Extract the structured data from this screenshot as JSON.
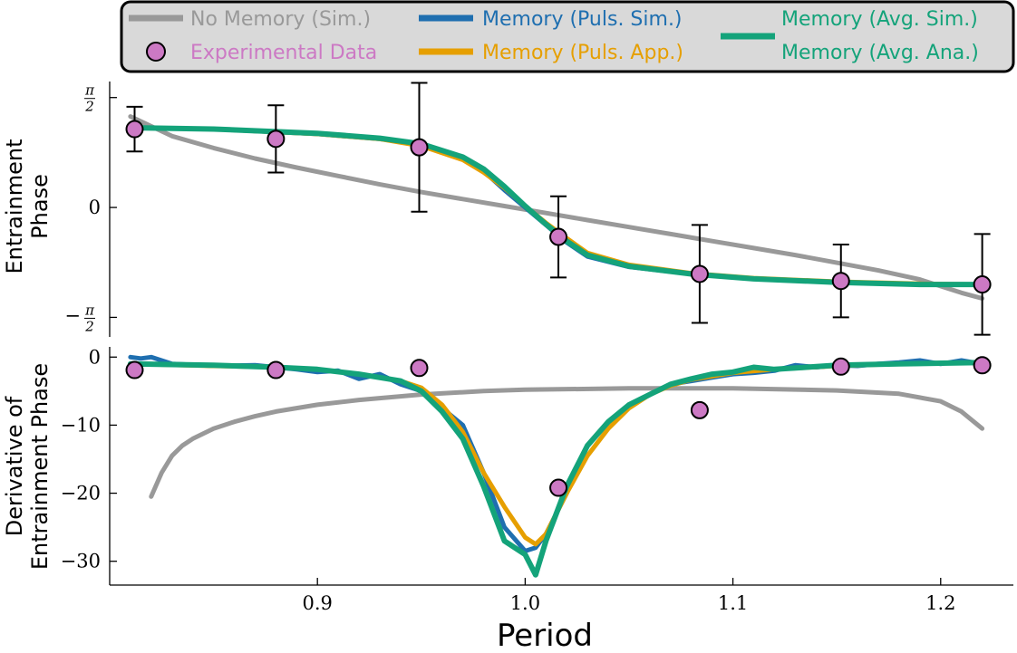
{
  "colors": {
    "no_memory": "#999999",
    "experimental": "#cc79c4",
    "puls_sim": "#1f6fb0",
    "puls_app": "#e69f00",
    "avg": "#14a37a",
    "legend_bg": "#d9d9d9"
  },
  "legend": {
    "no_memory": "No Memory (Sim.)",
    "experimental": "Experimental Data",
    "puls_sim": "Memory (Puls. Sim.)",
    "puls_app": "Memory (Puls. App.)",
    "avg_sim": "Memory (Avg. Sim.)",
    "avg_ana": "Memory (Avg. Ana.)"
  },
  "chart_data": [
    {
      "type": "line",
      "panel": "top",
      "ylabel": [
        "Entrainment",
        "Phase"
      ],
      "xlim": [
        0.8,
        1.235
      ],
      "ylim": [
        -1.85,
        1.8
      ],
      "y_ticks": [
        {
          "value": 1.5708,
          "label_num": "π",
          "label_den": "2",
          "sign": ""
        },
        {
          "value": 0,
          "label": "0"
        },
        {
          "value": -1.5708,
          "label_num": "π",
          "label_den": "2",
          "sign": "−"
        }
      ],
      "series": [
        {
          "key": "no_memory",
          "x": [
            0.81,
            0.83,
            0.85,
            0.87,
            0.89,
            0.91,
            0.93,
            0.95,
            0.97,
            0.99,
            1.01,
            1.03,
            1.05,
            1.07,
            1.09,
            1.11,
            1.13,
            1.15,
            1.17,
            1.19,
            1.21,
            1.22
          ],
          "y": [
            1.3,
            1.02,
            0.85,
            0.7,
            0.57,
            0.45,
            0.33,
            0.22,
            0.12,
            0.02,
            -0.08,
            -0.18,
            -0.28,
            -0.38,
            -0.48,
            -0.58,
            -0.68,
            -0.79,
            -0.9,
            -1.03,
            -1.22,
            -1.3
          ]
        },
        {
          "key": "puls_sim",
          "x": [
            0.81,
            0.85,
            0.9,
            0.93,
            0.95,
            0.97,
            0.98,
            0.99,
            1.0,
            1.01,
            1.02,
            1.03,
            1.05,
            1.08,
            1.11,
            1.15,
            1.19,
            1.22
          ],
          "y": [
            1.14,
            1.12,
            1.05,
            0.98,
            0.9,
            0.7,
            0.52,
            0.25,
            0.0,
            -0.25,
            -0.5,
            -0.7,
            -0.85,
            -0.95,
            -1.02,
            -1.07,
            -1.1,
            -1.1
          ]
        },
        {
          "key": "puls_app",
          "x": [
            0.81,
            0.85,
            0.9,
            0.93,
            0.95,
            0.97,
            0.98,
            0.99,
            1.0,
            1.01,
            1.02,
            1.03,
            1.05,
            1.08,
            1.11,
            1.15,
            1.19,
            1.22
          ],
          "y": [
            1.14,
            1.12,
            1.05,
            0.98,
            0.88,
            0.68,
            0.5,
            0.28,
            0.02,
            -0.22,
            -0.44,
            -0.65,
            -0.82,
            -0.94,
            -1.01,
            -1.06,
            -1.09,
            -1.1
          ]
        },
        {
          "key": "avg",
          "x": [
            0.81,
            0.85,
            0.9,
            0.93,
            0.95,
            0.97,
            0.98,
            0.99,
            1.0,
            1.01,
            1.02,
            1.03,
            1.05,
            1.08,
            1.11,
            1.15,
            1.19,
            1.22
          ],
          "y": [
            1.14,
            1.12,
            1.06,
            0.99,
            0.91,
            0.72,
            0.55,
            0.3,
            0.02,
            -0.24,
            -0.48,
            -0.68,
            -0.84,
            -0.95,
            -1.02,
            -1.07,
            -1.1,
            -1.1
          ]
        }
      ],
      "experimental": {
        "x": [
          0.812,
          0.88,
          0.949,
          1.016,
          1.084,
          1.152,
          1.22
        ],
        "y": [
          1.12,
          0.98,
          0.86,
          -0.42,
          -0.95,
          -1.05,
          -1.1
        ],
        "err": [
          0.32,
          0.48,
          0.92,
          0.58,
          0.7,
          0.52,
          0.72
        ]
      }
    },
    {
      "type": "line",
      "panel": "bottom",
      "xlabel": "Period",
      "ylabel": [
        "Derivative of",
        "Entrainment Phase"
      ],
      "xlim": [
        0.8,
        1.235
      ],
      "ylim": [
        -33.5,
        1.5
      ],
      "y_ticks": [
        0,
        -10,
        -20,
        -30
      ],
      "x_ticks": [
        0.9,
        1.0,
        1.1,
        1.2
      ],
      "series": [
        {
          "key": "no_memory",
          "x": [
            0.82,
            0.825,
            0.83,
            0.835,
            0.84,
            0.85,
            0.86,
            0.87,
            0.88,
            0.9,
            0.92,
            0.95,
            0.98,
            1.0,
            1.05,
            1.1,
            1.15,
            1.18,
            1.2,
            1.21,
            1.22
          ],
          "y": [
            -20.5,
            -17,
            -14.5,
            -13,
            -12,
            -10.5,
            -9.5,
            -8.7,
            -8,
            -7,
            -6.3,
            -5.5,
            -5,
            -4.8,
            -4.6,
            -4.6,
            -4.9,
            -5.4,
            -6.5,
            -8,
            -10.5
          ]
        },
        {
          "key": "puls_sim",
          "x": [
            0.81,
            0.815,
            0.82,
            0.83,
            0.85,
            0.87,
            0.88,
            0.89,
            0.9,
            0.91,
            0.92,
            0.93,
            0.94,
            0.95,
            0.96,
            0.97,
            0.98,
            0.99,
            1.0,
            1.005,
            1.01,
            1.02,
            1.03,
            1.04,
            1.05,
            1.06,
            1.07,
            1.08,
            1.09,
            1.1,
            1.11,
            1.12,
            1.13,
            1.14,
            1.15,
            1.16,
            1.17,
            1.18,
            1.19,
            1.2,
            1.21,
            1.22
          ],
          "y": [
            0,
            -0.2,
            0,
            -1,
            -1.3,
            -1.2,
            -1.5,
            -1.8,
            -2.2,
            -2.0,
            -3.2,
            -2.5,
            -4,
            -5,
            -7.5,
            -10,
            -17,
            -25,
            -28.5,
            -28,
            -26,
            -20,
            -13,
            -9.5,
            -7,
            -5.5,
            -4.0,
            -3.5,
            -3.0,
            -2.5,
            -2.3,
            -2.0,
            -1.2,
            -1.5,
            -1.2,
            -1.3,
            -1.0,
            -0.8,
            -0.5,
            -1.0,
            -0.5,
            -1.0
          ]
        },
        {
          "key": "puls_app",
          "x": [
            0.81,
            0.85,
            0.88,
            0.9,
            0.92,
            0.94,
            0.95,
            0.96,
            0.97,
            0.98,
            0.99,
            1.0,
            1.005,
            1.01,
            1.02,
            1.03,
            1.04,
            1.05,
            1.06,
            1.07,
            1.08,
            1.1,
            1.12,
            1.15,
            1.18,
            1.22
          ],
          "y": [
            -1,
            -1.3,
            -1.5,
            -1.8,
            -2.5,
            -3.5,
            -4.5,
            -7,
            -11,
            -17,
            -22,
            -26.5,
            -27.5,
            -26,
            -20,
            -14.5,
            -10.5,
            -7.5,
            -5.5,
            -4.2,
            -3.3,
            -2.3,
            -1.8,
            -1.3,
            -1.0,
            -0.8
          ]
        },
        {
          "key": "avg",
          "x": [
            0.81,
            0.85,
            0.88,
            0.9,
            0.92,
            0.94,
            0.95,
            0.96,
            0.97,
            0.98,
            0.99,
            1.0,
            1.005,
            1.01,
            1.02,
            1.03,
            1.04,
            1.05,
            1.06,
            1.07,
            1.08,
            1.09,
            1.1,
            1.11,
            1.12,
            1.15,
            1.18,
            1.22
          ],
          "y": [
            -1,
            -1.2,
            -1.5,
            -1.8,
            -2.5,
            -3.5,
            -5,
            -8,
            -12,
            -19,
            -27,
            -29,
            -32,
            -27,
            -19,
            -13,
            -9.5,
            -7,
            -5.5,
            -4,
            -3.2,
            -2.5,
            -2.2,
            -1.5,
            -1.8,
            -1.2,
            -1.0,
            -0.8
          ]
        }
      ],
      "experimental": {
        "x": [
          0.812,
          0.88,
          0.949,
          1.016,
          1.084,
          1.152,
          1.22
        ],
        "y": [
          -1.9,
          -1.9,
          -1.6,
          -19.2,
          -7.8,
          -1.4,
          -1.2
        ]
      }
    }
  ]
}
